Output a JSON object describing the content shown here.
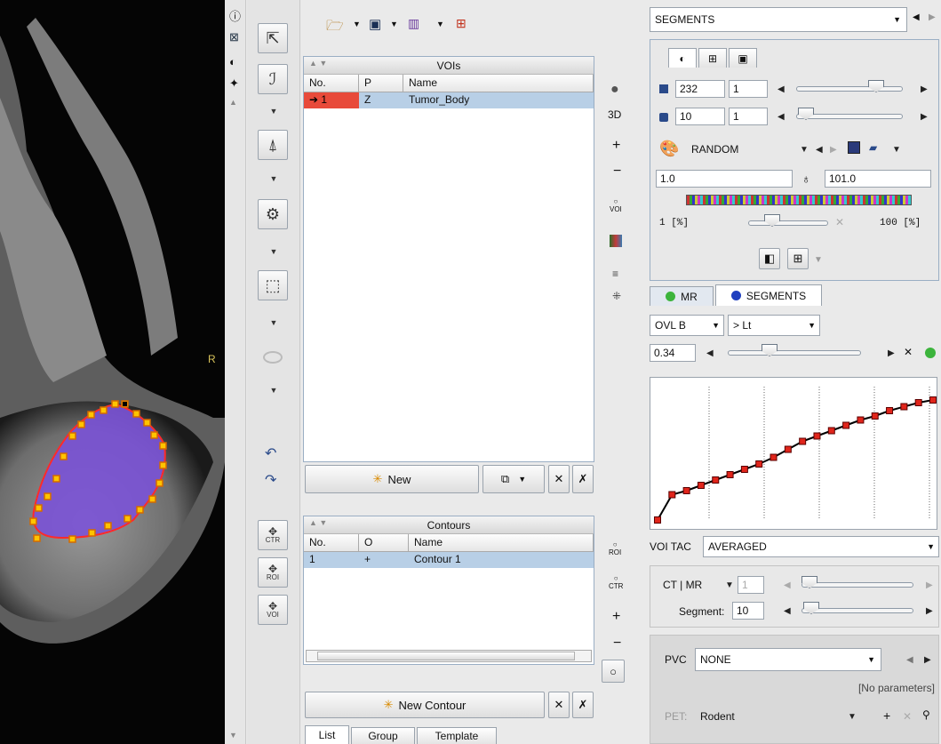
{
  "image_view": {
    "orientation_label": "R",
    "overlay_color": "#7a52d6",
    "contour_color": "#ff2a2a"
  },
  "toolbar_icons": [
    "open-folder-icon",
    "save-icon",
    "histogram-icon",
    "split-view-icon"
  ],
  "vois": {
    "title": "VOIs",
    "columns": [
      "No.",
      "P",
      "Name"
    ],
    "rows": [
      {
        "no": "1",
        "p": "Z",
        "name": "Tumor_Body"
      }
    ],
    "side_buttons": {
      "three_d": "3D",
      "plus": "+",
      "minus": "−",
      "voi": "VOI"
    },
    "new_label": "New"
  },
  "contours": {
    "title": "Contours",
    "columns": [
      "No.",
      "O",
      "Name"
    ],
    "rows": [
      {
        "no": "1",
        "o": "+",
        "name": "Contour 1"
      }
    ],
    "side_buttons": {
      "roi": "ROI",
      "ctr": "CTR",
      "plus": "+",
      "minus": "−"
    },
    "new_label": "New Contour"
  },
  "bottom_tabs": [
    "List",
    "Group",
    "Template"
  ],
  "tool_labels": {
    "ctr": "CTR",
    "roi": "ROI",
    "voi": "VOI"
  },
  "right": {
    "segments_combo": "SEGMENTS",
    "values": {
      "a1": "232",
      "a2": "1",
      "b1": "10",
      "b2": "1"
    },
    "colormap": "RANDOM",
    "min_val": "1.0",
    "max_val": "101.0",
    "range_left": "1 [%]",
    "range_right": "100 [%]",
    "layer_tabs": [
      "MR",
      "SEGMENTS"
    ],
    "ovl_combo": "OVL B",
    "op_combo": "> Lt",
    "thresh_val": "0.34",
    "voi_tac_label": "VOI TAC",
    "voi_tac_value": "AVERAGED",
    "ctmr_label": "CT | MR",
    "ctmr_value": "1",
    "segment_label": "Segment:",
    "segment_value": "10",
    "pvc_label": "PVC",
    "pvc_value": "NONE",
    "no_params": "[No parameters]",
    "pet_label": "PET:",
    "pet_value": "Rodent"
  },
  "chart_data": {
    "type": "line",
    "x": [
      0,
      1,
      2,
      3,
      4,
      5,
      6,
      7,
      8,
      9,
      10,
      11,
      12,
      13,
      14,
      15,
      16,
      17,
      18,
      19
    ],
    "values": [
      0,
      0.19,
      0.22,
      0.26,
      0.3,
      0.34,
      0.38,
      0.42,
      0.47,
      0.53,
      0.59,
      0.63,
      0.67,
      0.71,
      0.75,
      0.78,
      0.82,
      0.85,
      0.88,
      0.9
    ],
    "grid": "vertical dotted",
    "line_color": "#000000",
    "marker_color": "#e0251b"
  }
}
